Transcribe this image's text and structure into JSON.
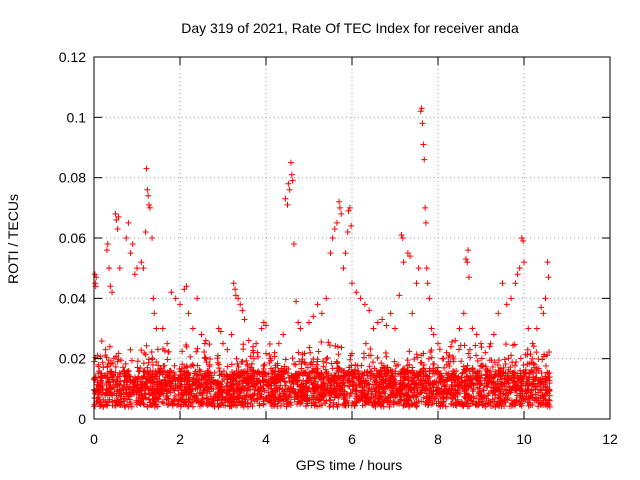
{
  "chart_data": {
    "type": "scatter",
    "title": "Day 319 of 2021, Rate Of TEC Index for receiver anda",
    "xlabel": "GPS time / hours",
    "ylabel": "ROTI / TECUs",
    "xlim": [
      0,
      12
    ],
    "ylim": [
      0,
      0.12
    ],
    "x_ticks": [
      "0",
      "2",
      "4",
      "6",
      "8",
      "10",
      "12"
    ],
    "y_ticks": [
      "0",
      "0.02",
      "0.04",
      "0.06",
      "0.08",
      "0.1",
      "0.12"
    ],
    "grid": true,
    "marker": "plus",
    "color": "#ff0000",
    "series": [
      {
        "points": [
          [
            0.02,
            0.048
          ],
          [
            0.03,
            0.045
          ],
          [
            0.04,
            0.044
          ],
          [
            0.05,
            0.047
          ],
          [
            0.08,
            0.021
          ],
          [
            0.1,
            0.018
          ],
          [
            0.3,
            0.056
          ],
          [
            0.32,
            0.058
          ],
          [
            0.35,
            0.05
          ],
          [
            0.38,
            0.044
          ],
          [
            0.42,
            0.042
          ],
          [
            0.5,
            0.068
          ],
          [
            0.52,
            0.066
          ],
          [
            0.55,
            0.063
          ],
          [
            0.57,
            0.067
          ],
          [
            0.6,
            0.05
          ],
          [
            0.75,
            0.06
          ],
          [
            0.8,
            0.065
          ],
          [
            0.85,
            0.055
          ],
          [
            0.9,
            0.058
          ],
          [
            0.95,
            0.048
          ],
          [
            1.0,
            0.05
          ],
          [
            1.1,
            0.052
          ],
          [
            1.15,
            0.05
          ],
          [
            1.2,
            0.062
          ],
          [
            1.22,
            0.083
          ],
          [
            1.24,
            0.076
          ],
          [
            1.26,
            0.074
          ],
          [
            1.28,
            0.071
          ],
          [
            1.3,
            0.07
          ],
          [
            1.35,
            0.06
          ],
          [
            1.38,
            0.04
          ],
          [
            1.4,
            0.035
          ],
          [
            1.45,
            0.03
          ],
          [
            1.6,
            0.03
          ],
          [
            1.7,
            0.025
          ],
          [
            1.8,
            0.042
          ],
          [
            1.9,
            0.04
          ],
          [
            2.0,
            0.038
          ],
          [
            2.1,
            0.043
          ],
          [
            2.15,
            0.044
          ],
          [
            2.2,
            0.035
          ],
          [
            2.3,
            0.03
          ],
          [
            2.4,
            0.04
          ],
          [
            2.5,
            0.028
          ],
          [
            2.6,
            0.026
          ],
          [
            2.9,
            0.03
          ],
          [
            2.95,
            0.029
          ],
          [
            3.0,
            0.025
          ],
          [
            3.1,
            0.023
          ],
          [
            3.2,
            0.028
          ],
          [
            3.25,
            0.045
          ],
          [
            3.28,
            0.043
          ],
          [
            3.3,
            0.041
          ],
          [
            3.35,
            0.04
          ],
          [
            3.4,
            0.038
          ],
          [
            3.45,
            0.036
          ],
          [
            3.5,
            0.033
          ],
          [
            3.6,
            0.026
          ],
          [
            3.7,
            0.024
          ],
          [
            3.8,
            0.022
          ],
          [
            3.9,
            0.03
          ],
          [
            3.95,
            0.032
          ],
          [
            4.0,
            0.031
          ],
          [
            4.1,
            0.02
          ],
          [
            4.2,
            0.022
          ],
          [
            4.3,
            0.025
          ],
          [
            4.4,
            0.028
          ],
          [
            4.45,
            0.073
          ],
          [
            4.5,
            0.071
          ],
          [
            4.52,
            0.078
          ],
          [
            4.55,
            0.076
          ],
          [
            4.58,
            0.085
          ],
          [
            4.6,
            0.081
          ],
          [
            4.62,
            0.079
          ],
          [
            4.65,
            0.058
          ],
          [
            4.7,
            0.039
          ],
          [
            4.75,
            0.032
          ],
          [
            4.8,
            0.03
          ],
          [
            5.0,
            0.032
          ],
          [
            5.1,
            0.034
          ],
          [
            5.2,
            0.038
          ],
          [
            5.3,
            0.035
          ],
          [
            5.4,
            0.04
          ],
          [
            5.5,
            0.055
          ],
          [
            5.55,
            0.06
          ],
          [
            5.6,
            0.063
          ],
          [
            5.65,
            0.065
          ],
          [
            5.7,
            0.072
          ],
          [
            5.72,
            0.07
          ],
          [
            5.75,
            0.068
          ],
          [
            5.8,
            0.05
          ],
          [
            5.85,
            0.055
          ],
          [
            5.9,
            0.062
          ],
          [
            5.92,
            0.069
          ],
          [
            5.95,
            0.07
          ],
          [
            5.98,
            0.064
          ],
          [
            6.0,
            0.045
          ],
          [
            6.1,
            0.042
          ],
          [
            6.2,
            0.04
          ],
          [
            6.3,
            0.038
          ],
          [
            6.4,
            0.036
          ],
          [
            6.5,
            0.03
          ],
          [
            6.6,
            0.032
          ],
          [
            6.7,
            0.033
          ],
          [
            6.8,
            0.031
          ],
          [
            6.9,
            0.035
          ],
          [
            7.0,
            0.03
          ],
          [
            7.1,
            0.041
          ],
          [
            7.15,
            0.061
          ],
          [
            7.18,
            0.06
          ],
          [
            7.2,
            0.052
          ],
          [
            7.3,
            0.055
          ],
          [
            7.35,
            0.054
          ],
          [
            7.4,
            0.035
          ],
          [
            7.5,
            0.045
          ],
          [
            7.55,
            0.05
          ],
          [
            7.6,
            0.102
          ],
          [
            7.62,
            0.103
          ],
          [
            7.64,
            0.098
          ],
          [
            7.66,
            0.091
          ],
          [
            7.68,
            0.086
          ],
          [
            7.7,
            0.07
          ],
          [
            7.72,
            0.065
          ],
          [
            7.74,
            0.05
          ],
          [
            7.76,
            0.045
          ],
          [
            7.8,
            0.04
          ],
          [
            7.85,
            0.03
          ],
          [
            7.9,
            0.028
          ],
          [
            8.0,
            0.025
          ],
          [
            8.1,
            0.02
          ],
          [
            8.2,
            0.022
          ],
          [
            8.3,
            0.024
          ],
          [
            8.4,
            0.026
          ],
          [
            8.5,
            0.03
          ],
          [
            8.6,
            0.035
          ],
          [
            8.65,
            0.053
          ],
          [
            8.68,
            0.052
          ],
          [
            8.7,
            0.056
          ],
          [
            8.72,
            0.047
          ],
          [
            8.8,
            0.03
          ],
          [
            8.9,
            0.028
          ],
          [
            9.0,
            0.025
          ],
          [
            9.1,
            0.022
          ],
          [
            9.2,
            0.024
          ],
          [
            9.3,
            0.028
          ],
          [
            9.4,
            0.035
          ],
          [
            9.5,
            0.045
          ],
          [
            9.6,
            0.038
          ],
          [
            9.7,
            0.04
          ],
          [
            9.8,
            0.045
          ],
          [
            9.85,
            0.048
          ],
          [
            9.9,
            0.05
          ],
          [
            9.95,
            0.06
          ],
          [
            9.98,
            0.059
          ],
          [
            10.0,
            0.052
          ],
          [
            10.1,
            0.03
          ],
          [
            10.2,
            0.025
          ],
          [
            10.3,
            0.03
          ],
          [
            10.4,
            0.037
          ],
          [
            10.45,
            0.035
          ],
          [
            10.5,
            0.04
          ],
          [
            10.55,
            0.052
          ],
          [
            10.57,
            0.047
          ],
          [
            10.6,
            0.004
          ]
        ]
      }
    ]
  }
}
